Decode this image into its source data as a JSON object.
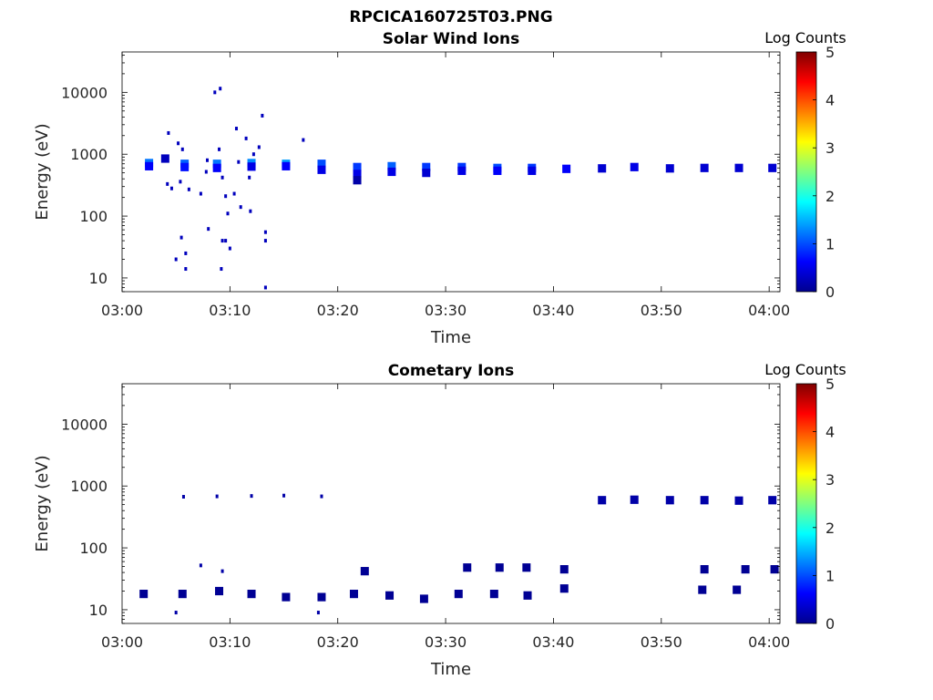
{
  "figure": {
    "title": "RPCICA160725T03.PNG"
  },
  "chart_data": [
    {
      "type": "heatmap",
      "title": "Solar Wind Ions",
      "xlabel": "Time",
      "ylabel": "Energy (eV)",
      "yscale": "log",
      "ylim": [
        6,
        45000
      ],
      "xlim": [
        "03:00",
        "04:01"
      ],
      "xticks": [
        "03:00",
        "03:10",
        "03:20",
        "03:30",
        "03:40",
        "03:50",
        "04:00"
      ],
      "yticks": [
        "10",
        "100",
        "1000",
        "10000"
      ],
      "colorbar": {
        "label": "Log Counts",
        "range": [
          0,
          5
        ],
        "ticks": [
          "0",
          "1",
          "2",
          "3",
          "4",
          "5"
        ]
      },
      "cells": [
        {
          "t": 2.5,
          "e": 720,
          "v": 1.2
        },
        {
          "t": 2.5,
          "e": 640,
          "v": 0.6
        },
        {
          "t": 4.0,
          "e": 850,
          "v": 0.3
        },
        {
          "t": 5.8,
          "e": 700,
          "v": 1.1
        },
        {
          "t": 5.8,
          "e": 620,
          "v": 0.7
        },
        {
          "t": 8.8,
          "e": 700,
          "v": 1.2
        },
        {
          "t": 8.8,
          "e": 600,
          "v": 0.6
        },
        {
          "t": 12.0,
          "e": 720,
          "v": 1.3
        },
        {
          "t": 12.0,
          "e": 630,
          "v": 0.5
        },
        {
          "t": 15.2,
          "e": 700,
          "v": 1.4
        },
        {
          "t": 15.2,
          "e": 640,
          "v": 0.6
        },
        {
          "t": 18.5,
          "e": 700,
          "v": 1.0
        },
        {
          "t": 18.5,
          "e": 560,
          "v": 0.5
        },
        {
          "t": 21.8,
          "e": 620,
          "v": 0.9
        },
        {
          "t": 21.8,
          "e": 480,
          "v": 0.5
        },
        {
          "t": 21.8,
          "e": 380,
          "v": 0.2
        },
        {
          "t": 25.0,
          "e": 640,
          "v": 1.1
        },
        {
          "t": 25.0,
          "e": 520,
          "v": 0.5
        },
        {
          "t": 28.2,
          "e": 620,
          "v": 0.9
        },
        {
          "t": 28.2,
          "e": 500,
          "v": 0.4
        },
        {
          "t": 31.5,
          "e": 620,
          "v": 0.9
        },
        {
          "t": 31.5,
          "e": 540,
          "v": 0.5
        },
        {
          "t": 34.8,
          "e": 600,
          "v": 1.0
        },
        {
          "t": 34.8,
          "e": 540,
          "v": 0.6
        },
        {
          "t": 38.0,
          "e": 600,
          "v": 0.9
        },
        {
          "t": 38.0,
          "e": 540,
          "v": 0.5
        },
        {
          "t": 41.2,
          "e": 580,
          "v": 0.6
        },
        {
          "t": 44.5,
          "e": 590,
          "v": 0.4
        },
        {
          "t": 47.5,
          "e": 620,
          "v": 0.5
        },
        {
          "t": 50.8,
          "e": 590,
          "v": 0.4
        },
        {
          "t": 54.0,
          "e": 600,
          "v": 0.4
        },
        {
          "t": 57.2,
          "e": 600,
          "v": 0.4
        },
        {
          "t": 60.3,
          "e": 600,
          "v": 0.4
        }
      ],
      "scatter": [
        {
          "t": 4.3,
          "e": 2200,
          "v": 0.3
        },
        {
          "t": 5.2,
          "e": 1500,
          "v": 0.3
        },
        {
          "t": 5.6,
          "e": 1200,
          "v": 0.3
        },
        {
          "t": 4.2,
          "e": 330,
          "v": 0.3
        },
        {
          "t": 4.6,
          "e": 280,
          "v": 0.3
        },
        {
          "t": 5.4,
          "e": 360,
          "v": 0.3
        },
        {
          "t": 6.2,
          "e": 270,
          "v": 0.3
        },
        {
          "t": 7.3,
          "e": 230,
          "v": 0.3
        },
        {
          "t": 7.8,
          "e": 520,
          "v": 0.3
        },
        {
          "t": 9.0,
          "e": 1200,
          "v": 0.3
        },
        {
          "t": 9.3,
          "e": 420,
          "v": 0.3
        },
        {
          "t": 9.6,
          "e": 210,
          "v": 0.3
        },
        {
          "t": 9.8,
          "e": 110,
          "v": 0.3
        },
        {
          "t": 10.4,
          "e": 230,
          "v": 0.3
        },
        {
          "t": 11.0,
          "e": 140,
          "v": 0.3
        },
        {
          "t": 10.6,
          "e": 2600,
          "v": 0.3
        },
        {
          "t": 11.5,
          "e": 1800,
          "v": 0.3
        },
        {
          "t": 11.8,
          "e": 420,
          "v": 0.3
        },
        {
          "t": 11.9,
          "e": 120,
          "v": 0.3
        },
        {
          "t": 12.7,
          "e": 1300,
          "v": 0.3
        },
        {
          "t": 13.0,
          "e": 4200,
          "v": 0.3
        },
        {
          "t": 13.3,
          "e": 55,
          "v": 0.3
        },
        {
          "t": 13.3,
          "e": 40,
          "v": 0.3
        },
        {
          "t": 13.3,
          "e": 7,
          "v": 0.3
        },
        {
          "t": 8.6,
          "e": 10000,
          "v": 0.3
        },
        {
          "t": 9.1,
          "e": 11500,
          "v": 0.3
        },
        {
          "t": 16.8,
          "e": 1700,
          "v": 0.3
        },
        {
          "t": 8.0,
          "e": 62,
          "v": 0.3
        },
        {
          "t": 9.3,
          "e": 40,
          "v": 0.3
        },
        {
          "t": 9.6,
          "e": 40,
          "v": 0.3
        },
        {
          "t": 10.0,
          "e": 30,
          "v": 0.3
        },
        {
          "t": 5.5,
          "e": 45,
          "v": 0.3
        },
        {
          "t": 5.0,
          "e": 20,
          "v": 0.3
        },
        {
          "t": 5.9,
          "e": 25,
          "v": 0.3
        },
        {
          "t": 5.9,
          "e": 14,
          "v": 0.3
        },
        {
          "t": 9.2,
          "e": 14,
          "v": 0.3
        },
        {
          "t": 10.8,
          "e": 750,
          "v": 0.3
        },
        {
          "t": 12.2,
          "e": 1000,
          "v": 0.3
        },
        {
          "t": 7.9,
          "e": 800,
          "v": 0.3
        }
      ]
    },
    {
      "type": "heatmap",
      "title": "Cometary Ions",
      "xlabel": "Time",
      "ylabel": "Energy (eV)",
      "yscale": "log",
      "ylim": [
        6,
        45000
      ],
      "xlim": [
        "03:00",
        "04:01"
      ],
      "xticks": [
        "03:00",
        "03:10",
        "03:20",
        "03:30",
        "03:40",
        "03:50",
        "04:00"
      ],
      "yticks": [
        "10",
        "100",
        "1000",
        "10000"
      ],
      "colorbar": {
        "label": "Log Counts",
        "range": [
          0,
          5
        ],
        "ticks": [
          "0",
          "1",
          "2",
          "3",
          "4",
          "5"
        ]
      },
      "cells": [
        {
          "t": 2.0,
          "e": 18,
          "v": 0.1
        },
        {
          "t": 5.6,
          "e": 18,
          "v": 0.1
        },
        {
          "t": 9.0,
          "e": 20,
          "v": 0.1
        },
        {
          "t": 12.0,
          "e": 18,
          "v": 0.1
        },
        {
          "t": 15.2,
          "e": 16,
          "v": 0.1
        },
        {
          "t": 18.5,
          "e": 16,
          "v": 0.1
        },
        {
          "t": 21.5,
          "e": 18,
          "v": 0.1
        },
        {
          "t": 24.8,
          "e": 17,
          "v": 0.1
        },
        {
          "t": 28.0,
          "e": 15,
          "v": 0.1
        },
        {
          "t": 31.2,
          "e": 18,
          "v": 0.1
        },
        {
          "t": 34.5,
          "e": 18,
          "v": 0.1
        },
        {
          "t": 37.6,
          "e": 17,
          "v": 0.1
        },
        {
          "t": 41.0,
          "e": 22,
          "v": 0.1
        },
        {
          "t": 44.5,
          "e": 590,
          "v": 0.2
        },
        {
          "t": 47.5,
          "e": 600,
          "v": 0.2
        },
        {
          "t": 50.8,
          "e": 590,
          "v": 0.2
        },
        {
          "t": 54.0,
          "e": 590,
          "v": 0.2
        },
        {
          "t": 57.2,
          "e": 580,
          "v": 0.2
        },
        {
          "t": 60.3,
          "e": 590,
          "v": 0.2
        },
        {
          "t": 22.5,
          "e": 42,
          "v": 0.1
        },
        {
          "t": 32.0,
          "e": 48,
          "v": 0.1
        },
        {
          "t": 35.0,
          "e": 48,
          "v": 0.1
        },
        {
          "t": 37.5,
          "e": 48,
          "v": 0.1
        },
        {
          "t": 41.0,
          "e": 45,
          "v": 0.1
        },
        {
          "t": 54.0,
          "e": 45,
          "v": 0.1
        },
        {
          "t": 57.8,
          "e": 45,
          "v": 0.1
        },
        {
          "t": 60.5,
          "e": 45,
          "v": 0.1
        },
        {
          "t": 53.8,
          "e": 21,
          "v": 0.1
        },
        {
          "t": 57.0,
          "e": 21,
          "v": 0.1
        }
      ],
      "scatter": [
        {
          "t": 5.7,
          "e": 670,
          "v": 0.2
        },
        {
          "t": 8.8,
          "e": 680,
          "v": 0.2
        },
        {
          "t": 12.0,
          "e": 690,
          "v": 0.2
        },
        {
          "t": 15.0,
          "e": 700,
          "v": 0.2
        },
        {
          "t": 18.5,
          "e": 680,
          "v": 0.2
        },
        {
          "t": 7.3,
          "e": 52,
          "v": 0.2
        },
        {
          "t": 9.3,
          "e": 42,
          "v": 0.2
        },
        {
          "t": 5.0,
          "e": 9,
          "v": 0.2
        },
        {
          "t": 18.2,
          "e": 9,
          "v": 0.2
        }
      ]
    }
  ]
}
